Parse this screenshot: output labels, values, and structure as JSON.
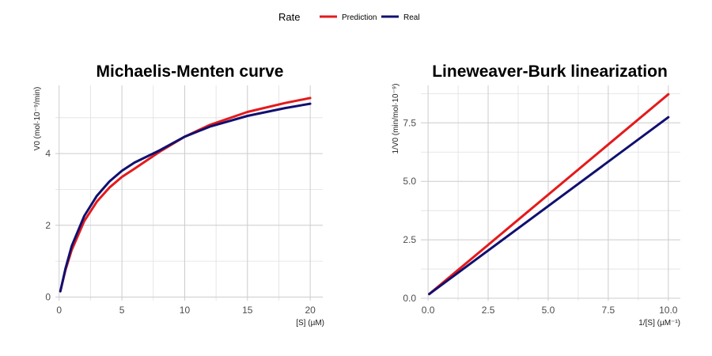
{
  "legend": {
    "title": "Rate",
    "items": [
      {
        "label": "Prediction",
        "color": "#e41a1c"
      },
      {
        "label": "Real",
        "color": "#101070"
      }
    ]
  },
  "chart_data": [
    {
      "type": "line",
      "title": "Michaelis-Menten curve",
      "xlabel": "[S] (µM)",
      "ylabel": "V0 (mol·10⁻⁹/min)",
      "xlim": [
        -0.3,
        21
      ],
      "ylim": [
        -0.1,
        5.9
      ],
      "xticks": [
        0,
        5,
        10,
        15,
        20
      ],
      "yticks": [
        0,
        2,
        4
      ],
      "x": [
        0.1,
        0.5,
        1,
        2,
        3,
        4,
        5,
        6,
        8,
        10,
        12,
        15,
        18,
        20
      ],
      "series": [
        {
          "name": "Prediction",
          "color": "#e41a1c",
          "values": [
            0.16,
            0.75,
            1.31,
            2.12,
            2.66,
            3.05,
            3.35,
            3.58,
            4.05,
            4.47,
            4.8,
            5.16,
            5.41,
            5.55
          ]
        },
        {
          "name": "Real",
          "color": "#101070",
          "values": [
            0.16,
            0.79,
            1.42,
            2.26,
            2.82,
            3.22,
            3.52,
            3.75,
            4.09,
            4.47,
            4.75,
            5.05,
            5.27,
            5.39
          ]
        }
      ]
    },
    {
      "type": "line",
      "title": "Lineweaver-Burk linearization",
      "xlabel": "1/[S] (µM⁻¹)",
      "ylabel": "1/V0 (min/mol·10⁻⁹)",
      "xlim": [
        -0.3,
        10.5
      ],
      "ylim": [
        -0.1,
        9.1
      ],
      "xticks": [
        0.0,
        2.5,
        5.0,
        7.5,
        10.0
      ],
      "yticks": [
        0.0,
        2.5,
        5.0,
        7.5
      ],
      "series": [
        {
          "name": "Prediction",
          "color": "#e41a1c",
          "x": [
            0.05,
            10.0
          ],
          "values": [
            0.18,
            8.72
          ]
        },
        {
          "name": "Real",
          "color": "#101070",
          "x": [
            0.05,
            10.0
          ],
          "values": [
            0.18,
            7.74
          ]
        }
      ]
    }
  ]
}
